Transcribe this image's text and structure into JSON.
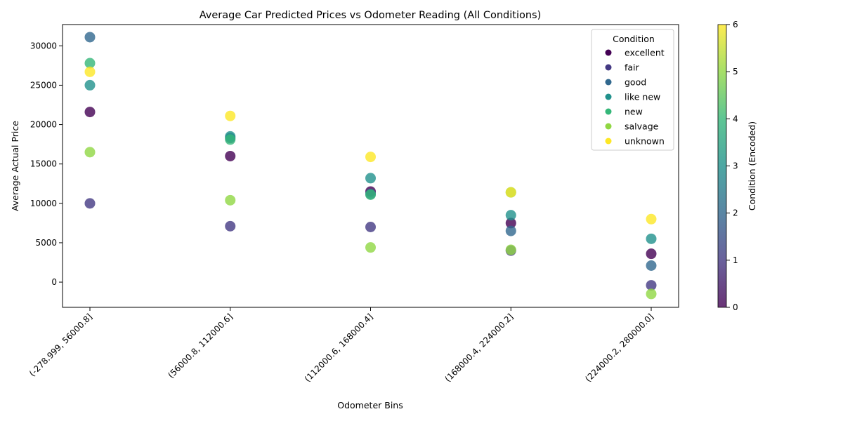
{
  "chart_data": {
    "type": "scatter",
    "title": "Average Car Predicted Prices vs Odometer Reading (All Conditions)",
    "xlabel": "Odometer Bins",
    "ylabel": "Average Actual Price",
    "categories": [
      "(-278.999, 56000.8]",
      "(56000.8, 112000.6]",
      "(112000.6, 168000.4]",
      "(168000.4, 224000.2]",
      "(224000.2, 280000.0]"
    ],
    "ylim": [
      -3200,
      32700
    ],
    "yticks": [
      0,
      5000,
      10000,
      15000,
      20000,
      25000,
      30000
    ],
    "grid": false,
    "legend": {
      "title": "Condition",
      "position": "top-right"
    },
    "series": [
      {
        "name": "excellent",
        "code": 0,
        "color": "#440154",
        "values": [
          21600,
          16000,
          11500,
          7500,
          3600
        ]
      },
      {
        "name": "fair",
        "code": 1,
        "color": "#443983",
        "values": [
          10000,
          7100,
          7000,
          4000,
          -400
        ]
      },
      {
        "name": "good",
        "code": 2,
        "color": "#31688e",
        "values": [
          31100,
          18300,
          11200,
          6500,
          2100
        ]
      },
      {
        "name": "like new",
        "code": 3,
        "color": "#21918c",
        "values": [
          25000,
          18500,
          13200,
          8500,
          5500
        ]
      },
      {
        "name": "new",
        "code": 4,
        "color": "#35b779",
        "values": [
          27800,
          18100,
          11100,
          11400,
          null
        ]
      },
      {
        "name": "salvage",
        "code": 5,
        "color": "#90d743",
        "values": [
          16500,
          10400,
          4400,
          4100,
          -1500
        ]
      },
      {
        "name": "unknown",
        "code": 6,
        "color": "#fde725",
        "values": [
          26700,
          21100,
          15900,
          11400,
          8000
        ]
      }
    ],
    "colorbar": {
      "label": "Condition (Encoded)",
      "range": [
        0,
        6
      ],
      "ticks": [
        0,
        1,
        2,
        3,
        4,
        5,
        6
      ],
      "colormap": "viridis"
    }
  }
}
